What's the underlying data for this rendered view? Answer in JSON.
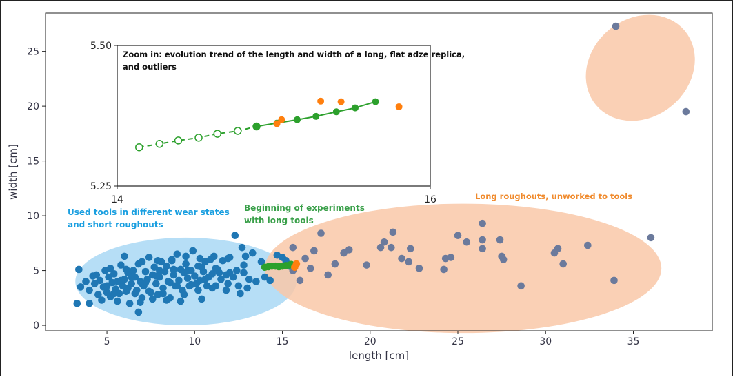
{
  "chart_data": [
    {
      "type": "scatter",
      "title": "",
      "xlabel": "length [cm]",
      "ylabel": "width [cm]",
      "xlim": [
        1.5,
        39.5
      ],
      "ylim": [
        -0.5,
        28.5
      ],
      "xticks": [
        5,
        10,
        15,
        20,
        25,
        30,
        35
      ],
      "yticks": [
        0,
        5,
        10,
        15,
        20,
        25
      ],
      "grid": false,
      "colors": {
        "blue_points": "#1f77b4",
        "grey_points": "#6b7a9c",
        "green_points": "#2ca02c",
        "orange_points": "#ff7f0e",
        "blue_region": "#a9d8f5",
        "orange_region": "#f9c8a8",
        "blue_text": "#1a9fe0",
        "green_text": "#3aa04a",
        "orange_text": "#f08a2c"
      },
      "annotations": [
        {
          "text": [
            "Used tools in different wear states",
            "and short roughouts"
          ],
          "color_key": "blue_text"
        },
        {
          "text": [
            "Beginning of experiments",
            "with long tools"
          ],
          "color_key": "green_text"
        },
        {
          "text": [
            "Long roughouts, unworked to tools"
          ],
          "color_key": "orange_text"
        }
      ],
      "regions": [
        {
          "name": "used-tools-region",
          "cx": 9.5,
          "cy": 4.0,
          "rx": 6.3,
          "ry": 4.0,
          "color_key": "blue_region"
        },
        {
          "name": "long-roughouts-region",
          "cx": 25.3,
          "cy": 5.2,
          "rx": 11.3,
          "ry": 5.9,
          "color_key": "orange_region"
        },
        {
          "name": "outliers-region",
          "cx": 35.4,
          "cy": 23.5,
          "rx": 3.3,
          "ry": 4.5,
          "rotate": -40,
          "color_key": "orange_region"
        }
      ],
      "series": [
        {
          "color_key": "blue_points",
          "points": [
            [
              3.3,
              2.0
            ],
            [
              3.4,
              5.1
            ],
            [
              3.5,
              3.5
            ],
            [
              3.8,
              4.0
            ],
            [
              4.0,
              3.2
            ],
            [
              4.0,
              2.0
            ],
            [
              4.2,
              4.5
            ],
            [
              4.3,
              3.8
            ],
            [
              4.5,
              2.8
            ],
            [
              4.6,
              4.1
            ],
            [
              4.8,
              3.5
            ],
            [
              4.9,
              5.0
            ],
            [
              5.0,
              3.0
            ],
            [
              5.1,
              4.4
            ],
            [
              5.2,
              2.6
            ],
            [
              5.3,
              3.9
            ],
            [
              5.4,
              4.7
            ],
            [
              5.5,
              3.3
            ],
            [
              5.6,
              4.0
            ],
            [
              5.7,
              2.9
            ],
            [
              5.8,
              5.5
            ],
            [
              5.9,
              3.6
            ],
            [
              6.0,
              4.2
            ],
            [
              6.0,
              6.3
            ],
            [
              6.1,
              3.1
            ],
            [
              6.2,
              4.8
            ],
            [
              6.3,
              2.0
            ],
            [
              6.4,
              3.8
            ],
            [
              6.5,
              5.0
            ],
            [
              6.6,
              4.4
            ],
            [
              6.7,
              3.2
            ],
            [
              6.8,
              1.2
            ],
            [
              6.8,
              5.6
            ],
            [
              6.9,
              4.0
            ],
            [
              7.0,
              2.5
            ],
            [
              7.1,
              3.6
            ],
            [
              7.2,
              4.9
            ],
            [
              7.3,
              4.2
            ],
            [
              7.4,
              6.2
            ],
            [
              7.5,
              3.0
            ],
            [
              7.6,
              4.6
            ],
            [
              7.7,
              5.3
            ],
            [
              7.8,
              3.8
            ],
            [
              7.9,
              2.8
            ],
            [
              8.0,
              4.4
            ],
            [
              8.1,
              5.8
            ],
            [
              8.2,
              3.4
            ],
            [
              8.3,
              4.9
            ],
            [
              8.4,
              5.4
            ],
            [
              8.5,
              4.0
            ],
            [
              8.6,
              2.5
            ],
            [
              8.7,
              5.9
            ],
            [
              8.8,
              4.6
            ],
            [
              8.9,
              3.6
            ],
            [
              9.0,
              6.5
            ],
            [
              9.1,
              4.1
            ],
            [
              9.2,
              5.1
            ],
            [
              9.3,
              3.2
            ],
            [
              9.4,
              4.8
            ],
            [
              9.5,
              5.6
            ],
            [
              9.6,
              4.3
            ],
            [
              9.7,
              3.6
            ],
            [
              9.8,
              5.0
            ],
            [
              9.9,
              6.8
            ],
            [
              10.0,
              4.5
            ],
            [
              10.1,
              3.8
            ],
            [
              10.2,
              5.4
            ],
            [
              10.3,
              4.1
            ],
            [
              10.4,
              2.4
            ],
            [
              10.5,
              4.9
            ],
            [
              10.6,
              5.8
            ],
            [
              10.7,
              3.6
            ],
            [
              10.8,
              4.4
            ],
            [
              10.9,
              6.0
            ],
            [
              11.0,
              4.7
            ],
            [
              11.2,
              3.6
            ],
            [
              11.3,
              5.1
            ],
            [
              11.5,
              4.2
            ],
            [
              11.6,
              5.9
            ],
            [
              11.8,
              4.6
            ],
            [
              11.9,
              3.8
            ],
            [
              12.0,
              6.2
            ],
            [
              12.2,
              4.4
            ],
            [
              12.3,
              8.2
            ],
            [
              12.4,
              5.0
            ],
            [
              12.5,
              3.6
            ],
            [
              12.7,
              7.1
            ],
            [
              12.8,
              4.8
            ],
            [
              12.9,
              6.3
            ],
            [
              13.1,
              4.2
            ],
            [
              13.3,
              6.6
            ],
            [
              13.5,
              4.0
            ],
            [
              13.8,
              5.8
            ],
            [
              14.0,
              4.4
            ],
            [
              14.3,
              4.1
            ],
            [
              14.7,
              6.4
            ],
            [
              15.0,
              6.2
            ],
            [
              15.2,
              5.9
            ],
            [
              15.4,
              5.4
            ],
            [
              5.0,
              3.6
            ],
            [
              5.4,
              2.9
            ],
            [
              5.8,
              4.1
            ],
            [
              6.2,
              3.4
            ],
            [
              6.6,
              2.9
            ],
            [
              7.0,
              3.8
            ],
            [
              7.4,
              3.1
            ],
            [
              7.8,
              4.5
            ],
            [
              8.2,
              2.9
            ],
            [
              8.6,
              3.9
            ],
            [
              9.0,
              3.6
            ],
            [
              9.4,
              2.8
            ],
            [
              9.8,
              3.7
            ],
            [
              10.2,
              3.2
            ],
            [
              10.6,
              4.2
            ],
            [
              11.0,
              3.4
            ],
            [
              11.4,
              4.8
            ],
            [
              11.8,
              3.2
            ],
            [
              6.4,
              4.4
            ],
            [
              7.2,
              3.9
            ],
            [
              8.0,
              5.0
            ],
            [
              8.8,
              5.1
            ],
            [
              9.6,
              5.0
            ],
            [
              10.4,
              5.3
            ],
            [
              11.2,
              5.2
            ],
            [
              12.0,
              4.8
            ],
            [
              12.8,
              5.5
            ],
            [
              6.1,
              5.1
            ],
            [
              7.0,
              5.8
            ],
            [
              7.9,
              5.9
            ],
            [
              8.7,
              6.0
            ],
            [
              9.5,
              6.3
            ],
            [
              10.3,
              6.1
            ],
            [
              11.1,
              6.3
            ],
            [
              11.9,
              6.1
            ],
            [
              4.4,
              4.6
            ],
            [
              4.7,
              2.3
            ],
            [
              5.2,
              5.2
            ],
            [
              5.6,
              2.2
            ],
            [
              6.9,
              2.1
            ],
            [
              7.6,
              2.4
            ],
            [
              8.4,
              2.3
            ],
            [
              9.2,
              2.2
            ],
            [
              12.6,
              2.9
            ],
            [
              13.0,
              3.4
            ]
          ]
        },
        {
          "color_key": "grey_points",
          "points": [
            [
              15.6,
              7.1
            ],
            [
              15.6,
              5.0
            ],
            [
              16.0,
              4.1
            ],
            [
              16.3,
              6.1
            ],
            [
              16.6,
              5.2
            ],
            [
              16.8,
              6.8
            ],
            [
              17.2,
              8.4
            ],
            [
              17.6,
              4.6
            ],
            [
              18.0,
              5.6
            ],
            [
              18.5,
              6.6
            ],
            [
              18.8,
              6.9
            ],
            [
              19.8,
              5.5
            ],
            [
              20.6,
              7.1
            ],
            [
              20.8,
              7.6
            ],
            [
              21.2,
              7.1
            ],
            [
              21.3,
              8.5
            ],
            [
              21.8,
              6.1
            ],
            [
              22.2,
              5.8
            ],
            [
              22.3,
              7.0
            ],
            [
              22.8,
              5.2
            ],
            [
              24.2,
              5.1
            ],
            [
              24.3,
              6.1
            ],
            [
              24.6,
              6.2
            ],
            [
              25.0,
              8.2
            ],
            [
              25.5,
              7.6
            ],
            [
              26.4,
              7.0
            ],
            [
              26.4,
              7.8
            ],
            [
              26.4,
              9.3
            ],
            [
              27.4,
              7.8
            ],
            [
              27.5,
              6.3
            ],
            [
              27.6,
              6.0
            ],
            [
              28.6,
              3.6
            ],
            [
              30.5,
              6.6
            ],
            [
              30.7,
              7.0
            ],
            [
              31.0,
              5.6
            ],
            [
              32.4,
              7.3
            ],
            [
              33.9,
              4.1
            ],
            [
              36.0,
              8.0
            ],
            [
              34.0,
              27.3
            ],
            [
              38.0,
              19.5
            ]
          ]
        },
        {
          "color_key": "green_points",
          "points": [
            [
              14.0,
              5.3
            ],
            [
              14.2,
              5.35
            ],
            [
              14.4,
              5.4
            ],
            [
              14.6,
              5.4
            ],
            [
              14.8,
              5.35
            ],
            [
              15.0,
              5.4
            ],
            [
              15.2,
              5.45
            ],
            [
              15.4,
              5.5
            ],
            [
              15.5,
              5.55
            ]
          ]
        },
        {
          "color_key": "orange_points",
          "points": [
            [
              15.7,
              5.3
            ],
            [
              15.8,
              5.6
            ]
          ]
        }
      ]
    },
    {
      "type": "line",
      "title": "Zoom in: evolution trend of the length and width of a long, flat adze replica, and outliers",
      "title_lines": [
        "Zoom in: evolution trend of the length and width of a long, flat adze replica,",
        "and outliers"
      ],
      "xlabel": "",
      "ylabel": "",
      "xlim": [
        14,
        16
      ],
      "ylim": [
        5.25,
        5.5
      ],
      "xticks": [
        "14",
        "16"
      ],
      "yticks": [
        "5.25",
        "5.50"
      ],
      "grid": false,
      "series": [
        {
          "style": "dashed-hollow",
          "color_key": "green_points",
          "x": [
            14.14,
            14.27,
            14.39,
            14.52,
            14.64,
            14.77,
            14.89
          ],
          "y": [
            5.319,
            5.325,
            5.331,
            5.336,
            5.343,
            5.348,
            5.356
          ]
        },
        {
          "style": "solid-filled",
          "color_key": "green_points",
          "x": [
            14.89,
            15.02,
            15.15,
            15.27,
            15.4,
            15.52,
            15.65
          ],
          "y": [
            5.356,
            5.362,
            5.368,
            5.374,
            5.382,
            5.389,
            5.4
          ]
        },
        {
          "style": "points",
          "color_key": "orange_points",
          "x": [
            15.02,
            15.05,
            15.3,
            15.43,
            15.8
          ],
          "y": [
            5.361,
            5.368,
            5.401,
            5.4,
            5.391
          ]
        }
      ]
    }
  ]
}
